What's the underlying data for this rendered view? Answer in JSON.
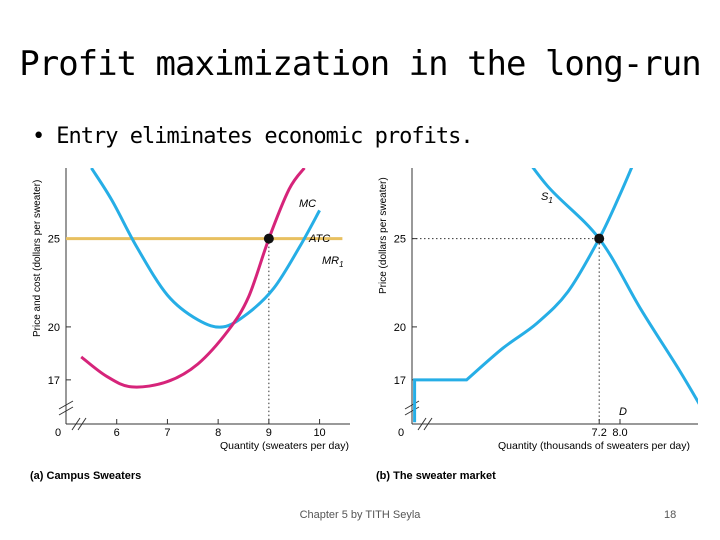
{
  "slide": {
    "title": "Profit maximization in the long-run",
    "bullet": "Entry eliminates economic profits.",
    "footer": "Chapter 5 by TITH Seyla",
    "page_number": "18"
  },
  "colors": {
    "mc": "#d6247a",
    "atc": "#26aee6",
    "mr": "#e8c060",
    "supply_demand": "#26aee6",
    "axis": "#333333"
  },
  "chart_data": [
    {
      "type": "line",
      "caption": "(a) Campus Sweaters",
      "ylabel": "Price and cost (dollars per sweater)",
      "xlabel": "Quantity (sweaters per day)",
      "xlim": [
        5,
        10.6
      ],
      "ylim": [
        14.5,
        29
      ],
      "axis_break": true,
      "origin_label": "0",
      "x_ticks": [
        "6",
        "7",
        "8",
        "9",
        "10"
      ],
      "y_ticks": [
        "17",
        "20",
        "25"
      ],
      "series": [
        {
          "name": "MC",
          "points": [
            [
              5.3,
              18.3
            ],
            [
              5.8,
              17.2
            ],
            [
              6.3,
              16.6
            ],
            [
              7,
              16.9
            ],
            [
              7.6,
              17.9
            ],
            [
              8.2,
              19.8
            ],
            [
              8.6,
              21.7
            ],
            [
              9,
              25
            ],
            [
              9.4,
              27.8
            ],
            [
              9.7,
              29
            ]
          ]
        },
        {
          "name": "ATC",
          "points": [
            [
              5.5,
              29
            ],
            [
              5.9,
              27.2
            ],
            [
              6.4,
              24.5
            ],
            [
              7,
              21.8
            ],
            [
              7.6,
              20.4
            ],
            [
              8.1,
              20
            ],
            [
              8.6,
              20.8
            ],
            [
              9.1,
              22.2
            ],
            [
              9.6,
              24.5
            ],
            [
              10,
              26.6
            ]
          ]
        },
        {
          "name": "MR",
          "subscript": "1",
          "points": [
            [
              5,
              25
            ],
            [
              10.45,
              25
            ]
          ]
        }
      ],
      "equilibrium": {
        "x": 9,
        "y": 25
      }
    },
    {
      "type": "line",
      "caption": "(b) The sweater market",
      "ylabel": "Price (dollars per sweater)",
      "xlabel": "Quantity (thousands of sweaters per day)",
      "xlim": [
        0,
        11
      ],
      "ylim": [
        14.5,
        29
      ],
      "axis_break": true,
      "origin_label": "0",
      "x_ticks": [
        "7.2",
        "8.0"
      ],
      "y_ticks": [
        "17",
        "20",
        "25"
      ],
      "series": [
        {
          "name": "S",
          "subscript": "1",
          "points": [
            [
              0.1,
              14.6
            ],
            [
              0.1,
              17
            ],
            [
              2.1,
              17
            ],
            [
              3.5,
              18.8
            ],
            [
              4.8,
              20.2
            ],
            [
              6,
              22
            ],
            [
              7.2,
              25
            ],
            [
              8,
              27.5
            ],
            [
              8.5,
              29.2
            ]
          ]
        },
        {
          "name": "D",
          "points": [
            [
              3.7,
              31
            ],
            [
              5.2,
              28
            ],
            [
              7.2,
              25
            ],
            [
              8.8,
              21
            ],
            [
              10.3,
              17.5
            ],
            [
              11.3,
              15
            ]
          ]
        }
      ],
      "equilibrium": {
        "x": 7.2,
        "y": 25
      }
    }
  ]
}
